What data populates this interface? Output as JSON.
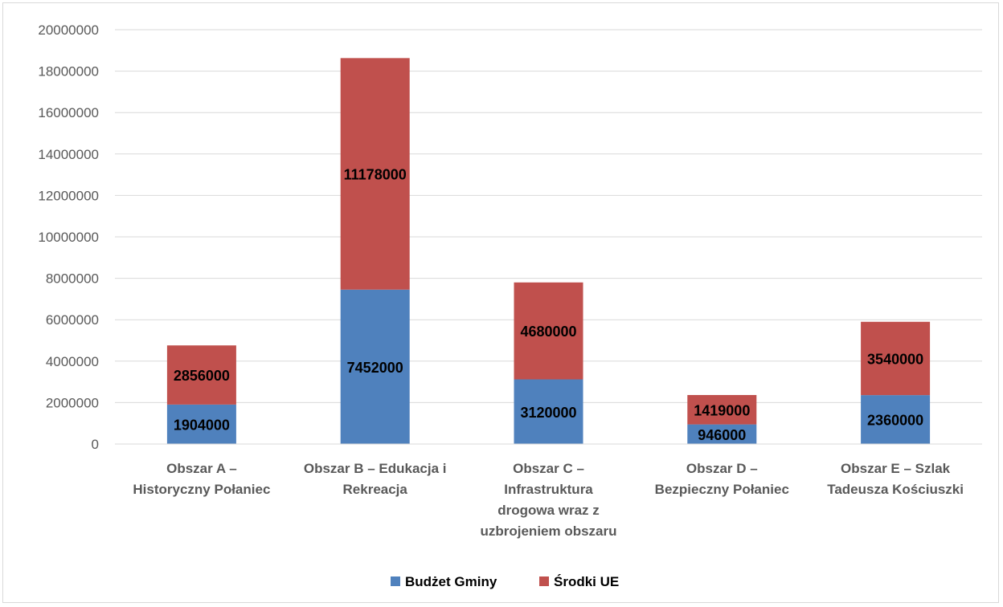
{
  "chart_data": {
    "type": "bar",
    "stacked": true,
    "title": "",
    "xlabel": "",
    "ylabel": "",
    "ylim": [
      0,
      20000000
    ],
    "yticks": [
      0,
      2000000,
      4000000,
      6000000,
      8000000,
      10000000,
      12000000,
      14000000,
      16000000,
      18000000,
      20000000
    ],
    "grid": true,
    "legend_position": "bottom",
    "categories": [
      [
        "Obszar A –",
        "Historyczny Połaniec"
      ],
      [
        "Obszar B – Edukacja i",
        "Rekreacja"
      ],
      [
        "Obszar C –",
        "Infrastruktura",
        "drogowa wraz z",
        "uzbrojeniem obszaru"
      ],
      [
        "Obszar D –",
        "Bezpieczny Połaniec"
      ],
      [
        "Obszar E – Szlak",
        "Tadeusza Kościuszki"
      ]
    ],
    "series": [
      {
        "name": "Budżet Gminy",
        "color": "#4f81bd",
        "values": [
          1904000,
          7452000,
          3120000,
          946000,
          2360000
        ]
      },
      {
        "name": "Środki UE",
        "color": "#c0504d",
        "values": [
          2856000,
          11178000,
          4680000,
          1419000,
          3540000
        ]
      }
    ]
  }
}
